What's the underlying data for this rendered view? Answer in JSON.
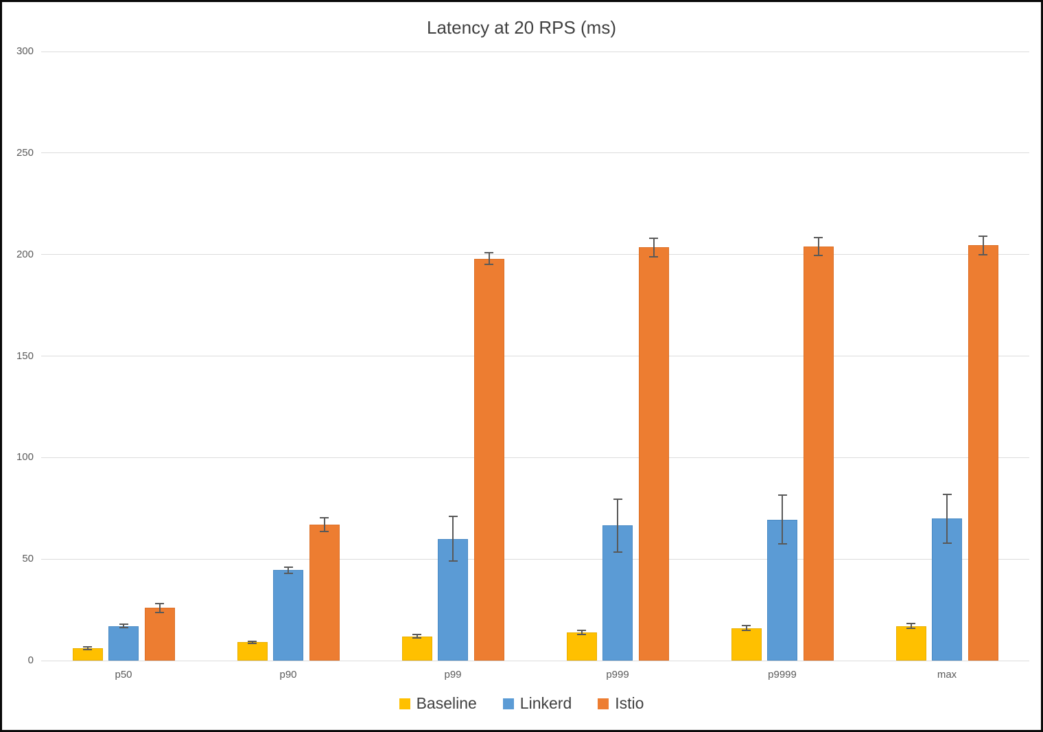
{
  "chart_data": {
    "type": "bar",
    "title": "Latency at 20 RPS (ms)",
    "xlabel": "",
    "ylabel": "",
    "categories": [
      "p50",
      "p90",
      "p99",
      "p999",
      "p9999",
      "max"
    ],
    "series": [
      {
        "name": "Baseline",
        "color": "#FFC000",
        "border_color": "#E8AE00",
        "values": [
          6,
          9,
          12,
          14,
          16,
          17
        ],
        "errors": [
          0.6,
          0.6,
          1,
          1,
          1.2,
          1.2
        ]
      },
      {
        "name": "Linkerd",
        "color": "#5B9BD5",
        "border_color": "#4A8AC4",
        "values": [
          17,
          44.5,
          60,
          66.5,
          69.5,
          70
        ],
        "errors": [
          0.8,
          1.5,
          11,
          13,
          12,
          12
        ]
      },
      {
        "name": "Istio",
        "color": "#ED7D31",
        "border_color": "#DC6F26",
        "values": [
          26,
          67,
          198,
          203.5,
          204,
          204.5
        ],
        "errors": [
          2.2,
          3.5,
          3,
          4.5,
          4.5,
          4.5
        ]
      }
    ],
    "y_axis": {
      "min": 0,
      "max": 300,
      "tick_step": 50,
      "ticks": [
        0,
        50,
        100,
        150,
        200,
        250,
        300
      ]
    },
    "grid": true,
    "grid_color": "#dcdcdc",
    "error_bars": true,
    "error_bar_color": "#595959",
    "legend_position": "bottom"
  }
}
